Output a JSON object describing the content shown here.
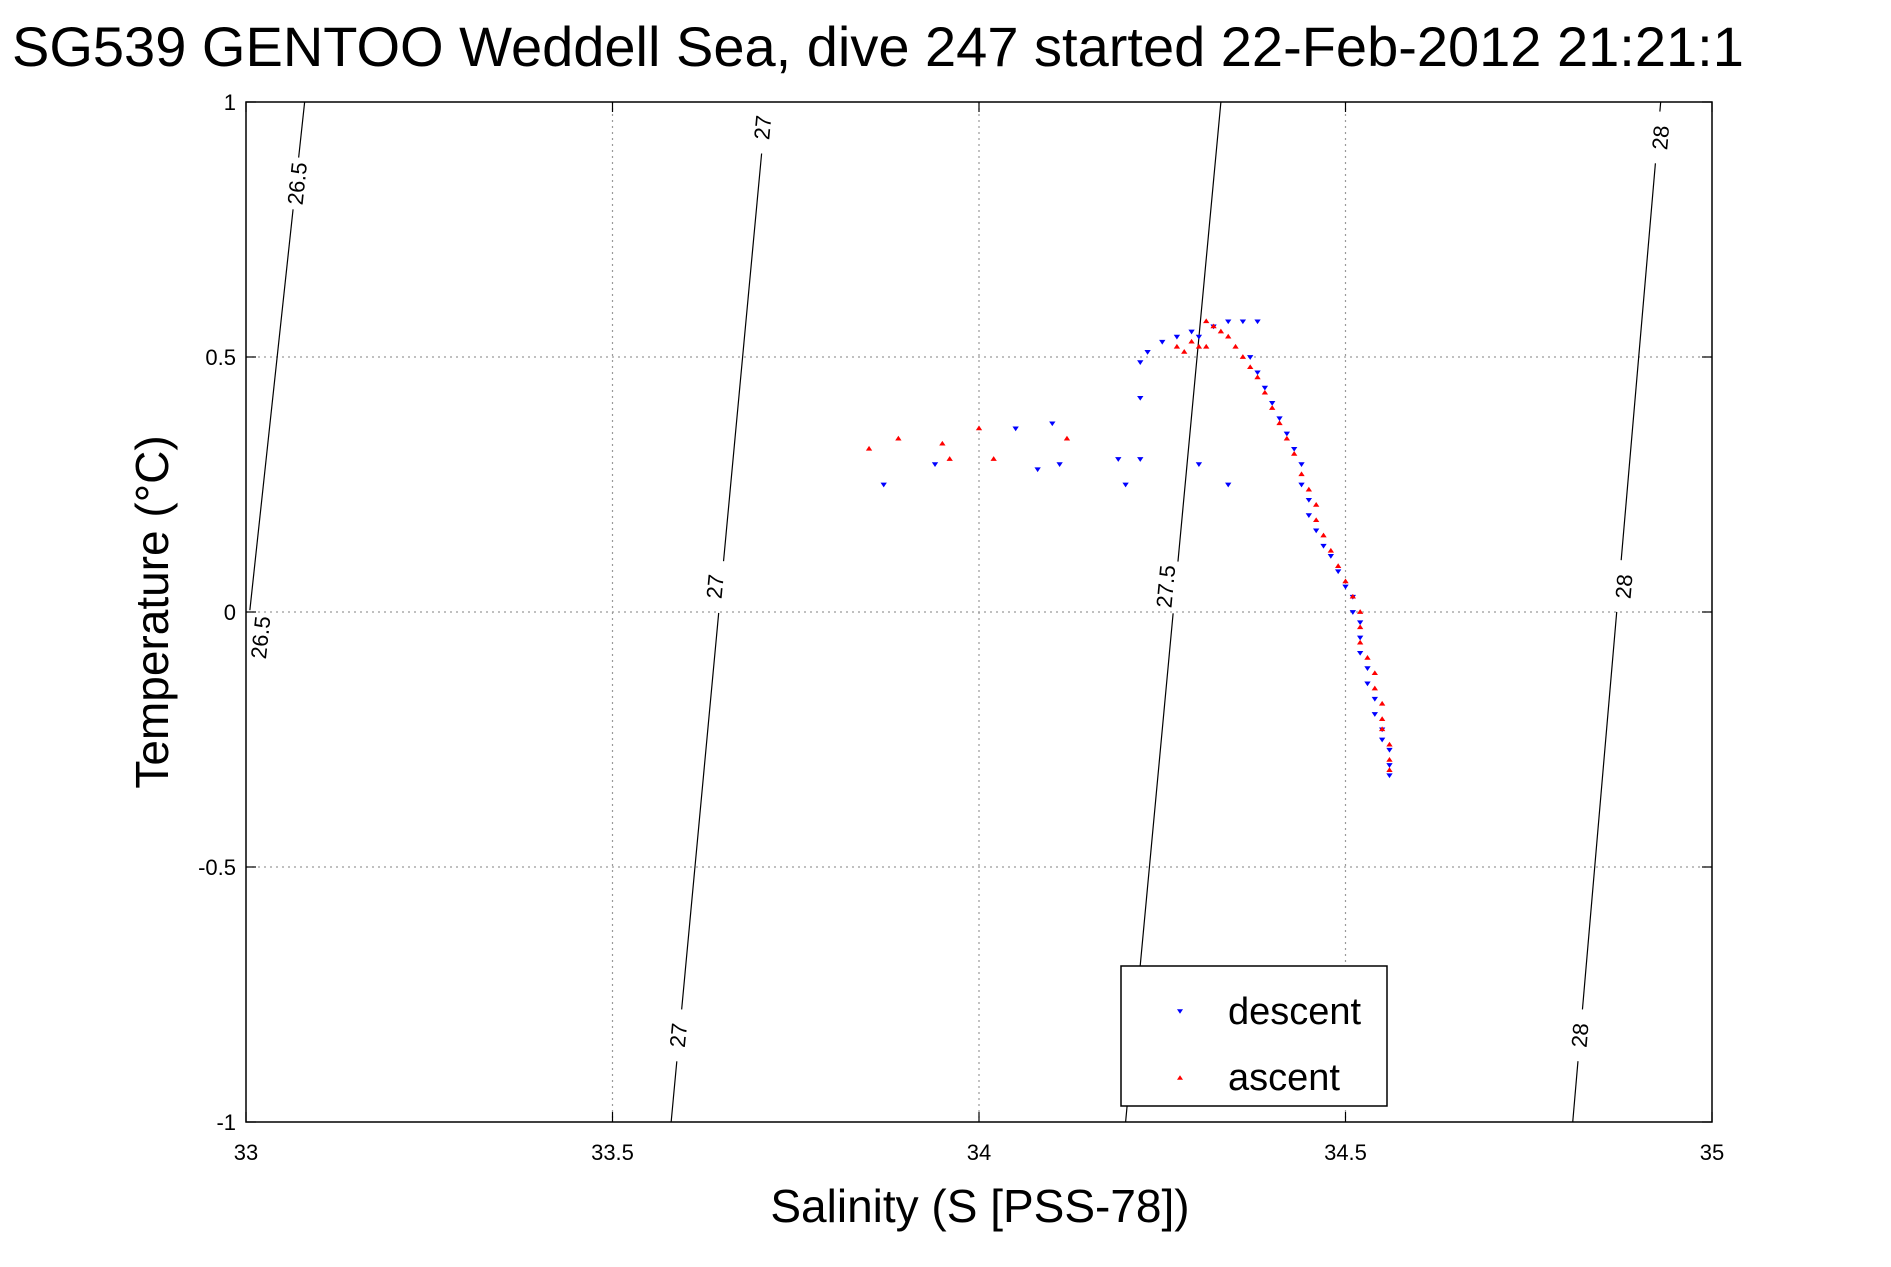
{
  "chart_data": {
    "type": "scatter",
    "title": "SG539 GENTOO Weddell Sea, dive 247 started 22-Feb-2012 21:21:1",
    "xlabel": "Salinity (S [PSS-78])",
    "ylabel": "Temperature (°C)",
    "xlim": [
      33,
      35
    ],
    "ylim": [
      -1,
      1
    ],
    "xticks": [
      33,
      33.5,
      34,
      34.5,
      35
    ],
    "yticks": [
      -1,
      -0.5,
      0,
      0.5,
      1
    ],
    "xtick_labels": [
      "33",
      "33.5",
      "34",
      "34.5",
      "35"
    ],
    "ytick_labels": [
      "-1",
      "-0.5",
      "0",
      "0.5",
      "1"
    ],
    "grid": true,
    "legend_position": "bottom-center",
    "isopycnals": [
      {
        "sigma": 26.5,
        "x_at_ymin": 32.93,
        "x_at_ymax": 33.08,
        "labels": [
          {
            "text": "26.5",
            "x": 33.07,
            "y": 0.84
          },
          {
            "text": "26.5",
            "x": 33.02,
            "y": -0.05
          }
        ]
      },
      {
        "sigma": 27,
        "x_at_ymin": 33.58,
        "x_at_ymax": 33.71,
        "labels": [
          {
            "text": "27",
            "x": 33.705,
            "y": 0.95
          },
          {
            "text": "27",
            "x": 33.64,
            "y": 0.05
          },
          {
            "text": "27",
            "x": 33.59,
            "y": -0.83
          }
        ]
      },
      {
        "sigma": 27.5,
        "x_at_ymin": 34.2,
        "x_at_ymax": 34.33,
        "labels": [
          {
            "text": "27.5",
            "x": 34.255,
            "y": 0.05
          }
        ]
      },
      {
        "sigma": 28,
        "x_at_ymin": 34.81,
        "x_at_ymax": 34.93,
        "labels": [
          {
            "text": "28",
            "x": 34.93,
            "y": 0.93
          },
          {
            "text": "28",
            "x": 34.88,
            "y": 0.05
          },
          {
            "text": "28",
            "x": 34.82,
            "y": -0.83
          }
        ]
      }
    ],
    "series": [
      {
        "name": "descent",
        "color": "#0000ff",
        "marker": "triangle-down",
        "points": [
          [
            33.87,
            0.25
          ],
          [
            33.94,
            0.29
          ],
          [
            34.05,
            0.36
          ],
          [
            34.1,
            0.37
          ],
          [
            34.08,
            0.28
          ],
          [
            34.11,
            0.29
          ],
          [
            34.19,
            0.3
          ],
          [
            34.2,
            0.25
          ],
          [
            34.22,
            0.3
          ],
          [
            34.22,
            0.42
          ],
          [
            34.22,
            0.49
          ],
          [
            34.23,
            0.51
          ],
          [
            34.25,
            0.53
          ],
          [
            34.27,
            0.54
          ],
          [
            34.29,
            0.55
          ],
          [
            34.3,
            0.54
          ],
          [
            34.32,
            0.56
          ],
          [
            34.34,
            0.57
          ],
          [
            34.36,
            0.57
          ],
          [
            34.38,
            0.57
          ],
          [
            34.3,
            0.29
          ],
          [
            34.34,
            0.25
          ],
          [
            34.37,
            0.5
          ],
          [
            34.38,
            0.47
          ],
          [
            34.39,
            0.44
          ],
          [
            34.4,
            0.41
          ],
          [
            34.41,
            0.38
          ],
          [
            34.42,
            0.35
          ],
          [
            34.43,
            0.32
          ],
          [
            34.44,
            0.29
          ],
          [
            34.44,
            0.25
          ],
          [
            34.45,
            0.22
          ],
          [
            34.45,
            0.19
          ],
          [
            34.46,
            0.16
          ],
          [
            34.47,
            0.13
          ],
          [
            34.48,
            0.11
          ],
          [
            34.49,
            0.08
          ],
          [
            34.5,
            0.05
          ],
          [
            34.51,
            0.03
          ],
          [
            34.51,
            0.0
          ],
          [
            34.52,
            -0.02
          ],
          [
            34.52,
            -0.05
          ],
          [
            34.52,
            -0.08
          ],
          [
            34.53,
            -0.11
          ],
          [
            34.53,
            -0.14
          ],
          [
            34.54,
            -0.17
          ],
          [
            34.54,
            -0.2
          ],
          [
            34.55,
            -0.23
          ],
          [
            34.55,
            -0.25
          ],
          [
            34.56,
            -0.27
          ],
          [
            34.56,
            -0.3
          ],
          [
            34.56,
            -0.32
          ]
        ]
      },
      {
        "name": "ascent",
        "color": "#ff0000",
        "marker": "triangle-up",
        "points": [
          [
            33.85,
            0.32
          ],
          [
            33.89,
            0.34
          ],
          [
            33.95,
            0.33
          ],
          [
            33.96,
            0.3
          ],
          [
            34.0,
            0.36
          ],
          [
            34.02,
            0.3
          ],
          [
            34.12,
            0.34
          ],
          [
            34.27,
            0.52
          ],
          [
            34.28,
            0.51
          ],
          [
            34.29,
            0.53
          ],
          [
            34.3,
            0.52
          ],
          [
            34.31,
            0.52
          ],
          [
            34.31,
            0.57
          ],
          [
            34.32,
            0.56
          ],
          [
            34.33,
            0.55
          ],
          [
            34.34,
            0.54
          ],
          [
            34.35,
            0.52
          ],
          [
            34.36,
            0.5
          ],
          [
            34.37,
            0.48
          ],
          [
            34.38,
            0.46
          ],
          [
            34.39,
            0.43
          ],
          [
            34.4,
            0.4
          ],
          [
            34.41,
            0.37
          ],
          [
            34.42,
            0.34
          ],
          [
            34.43,
            0.31
          ],
          [
            34.44,
            0.27
          ],
          [
            34.45,
            0.24
          ],
          [
            34.46,
            0.21
          ],
          [
            34.46,
            0.18
          ],
          [
            34.47,
            0.15
          ],
          [
            34.48,
            0.12
          ],
          [
            34.49,
            0.09
          ],
          [
            34.5,
            0.06
          ],
          [
            34.51,
            0.03
          ],
          [
            34.52,
            0.0
          ],
          [
            34.52,
            -0.03
          ],
          [
            34.52,
            -0.06
          ],
          [
            34.53,
            -0.09
          ],
          [
            34.54,
            -0.12
          ],
          [
            34.54,
            -0.15
          ],
          [
            34.55,
            -0.18
          ],
          [
            34.55,
            -0.21
          ],
          [
            34.55,
            -0.23
          ],
          [
            34.56,
            -0.26
          ],
          [
            34.56,
            -0.29
          ],
          [
            34.56,
            -0.31
          ]
        ]
      }
    ]
  }
}
